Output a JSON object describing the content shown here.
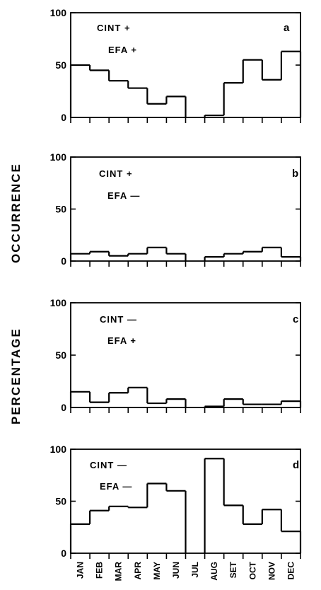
{
  "chart_data": {
    "type": "step",
    "ylabel": [
      "PERCENTAGE",
      "OCCURRENCE"
    ],
    "categories": [
      "JAN",
      "FEB",
      "MAR",
      "APR",
      "MAY",
      "JUN",
      "JUL",
      "AUG",
      "SET",
      "OCT",
      "NOV",
      "DEC"
    ],
    "ylim": [
      0,
      100
    ],
    "yticks": [
      "0",
      "50",
      "100"
    ],
    "panels": [
      {
        "letter": "a",
        "labels": [
          "CINT +",
          "EFA +"
        ],
        "values": [
          50,
          45,
          35,
          28,
          13,
          20,
          0,
          2,
          33,
          55,
          36,
          63
        ]
      },
      {
        "letter": "b",
        "labels": [
          "CINT +",
          "EFA —"
        ],
        "values": [
          7,
          9,
          5,
          7,
          13,
          7,
          0,
          4,
          7,
          9,
          13,
          4
        ]
      },
      {
        "letter": "c",
        "labels": [
          "CINT —",
          "EFA +"
        ],
        "values": [
          15,
          5,
          14,
          19,
          4,
          8,
          0,
          1,
          8,
          3,
          3,
          6
        ]
      },
      {
        "letter": "d",
        "labels": [
          "CINT —",
          "EFA —"
        ],
        "values": [
          28,
          41,
          45,
          44,
          67,
          60,
          0,
          91,
          46,
          28,
          42,
          21
        ]
      }
    ]
  }
}
